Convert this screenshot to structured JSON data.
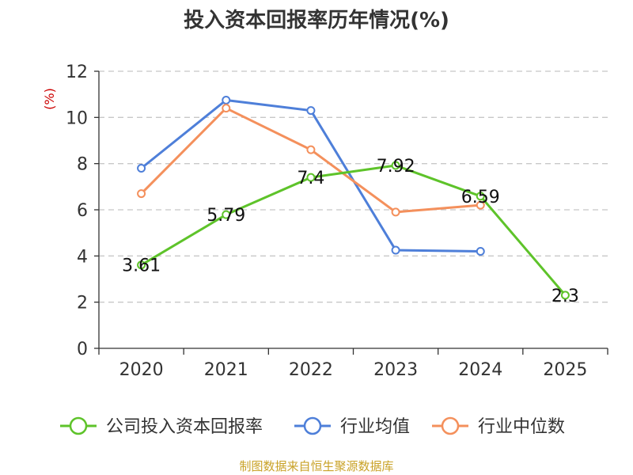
{
  "chart_data": {
    "type": "line",
    "title": "投入资本回报率历年情况(%)",
    "ylabel": "(%)",
    "xlabel": "",
    "categories": [
      "2020",
      "2021",
      "2022",
      "2023",
      "2024",
      "2025"
    ],
    "ylim": [
      0,
      12
    ],
    "yticks": [
      0,
      2,
      4,
      6,
      8,
      10,
      12
    ],
    "grid": true,
    "legend_position": "bottom",
    "series": [
      {
        "name": "公司投入资本回报率",
        "values": [
          3.61,
          5.79,
          7.4,
          7.92,
          6.59,
          2.3
        ],
        "labels": [
          "3.61",
          "5.79",
          "7.4",
          "7.92",
          "6.59",
          "2.3"
        ],
        "color": "#5ec32a"
      },
      {
        "name": "行业均值",
        "values": [
          7.8,
          10.75,
          10.3,
          4.25,
          4.2,
          null
        ],
        "color": "#4e7fd9"
      },
      {
        "name": "行业中位数",
        "values": [
          6.7,
          10.4,
          8.6,
          5.9,
          6.2,
          null
        ],
        "color": "#f4905c"
      }
    ],
    "source": "制图数据来自恒生聚源数据库"
  },
  "colors": {
    "ylabel": "#cc0000",
    "source": "#c9a227",
    "axis": "#333333",
    "grid": "#c8c8c8"
  }
}
